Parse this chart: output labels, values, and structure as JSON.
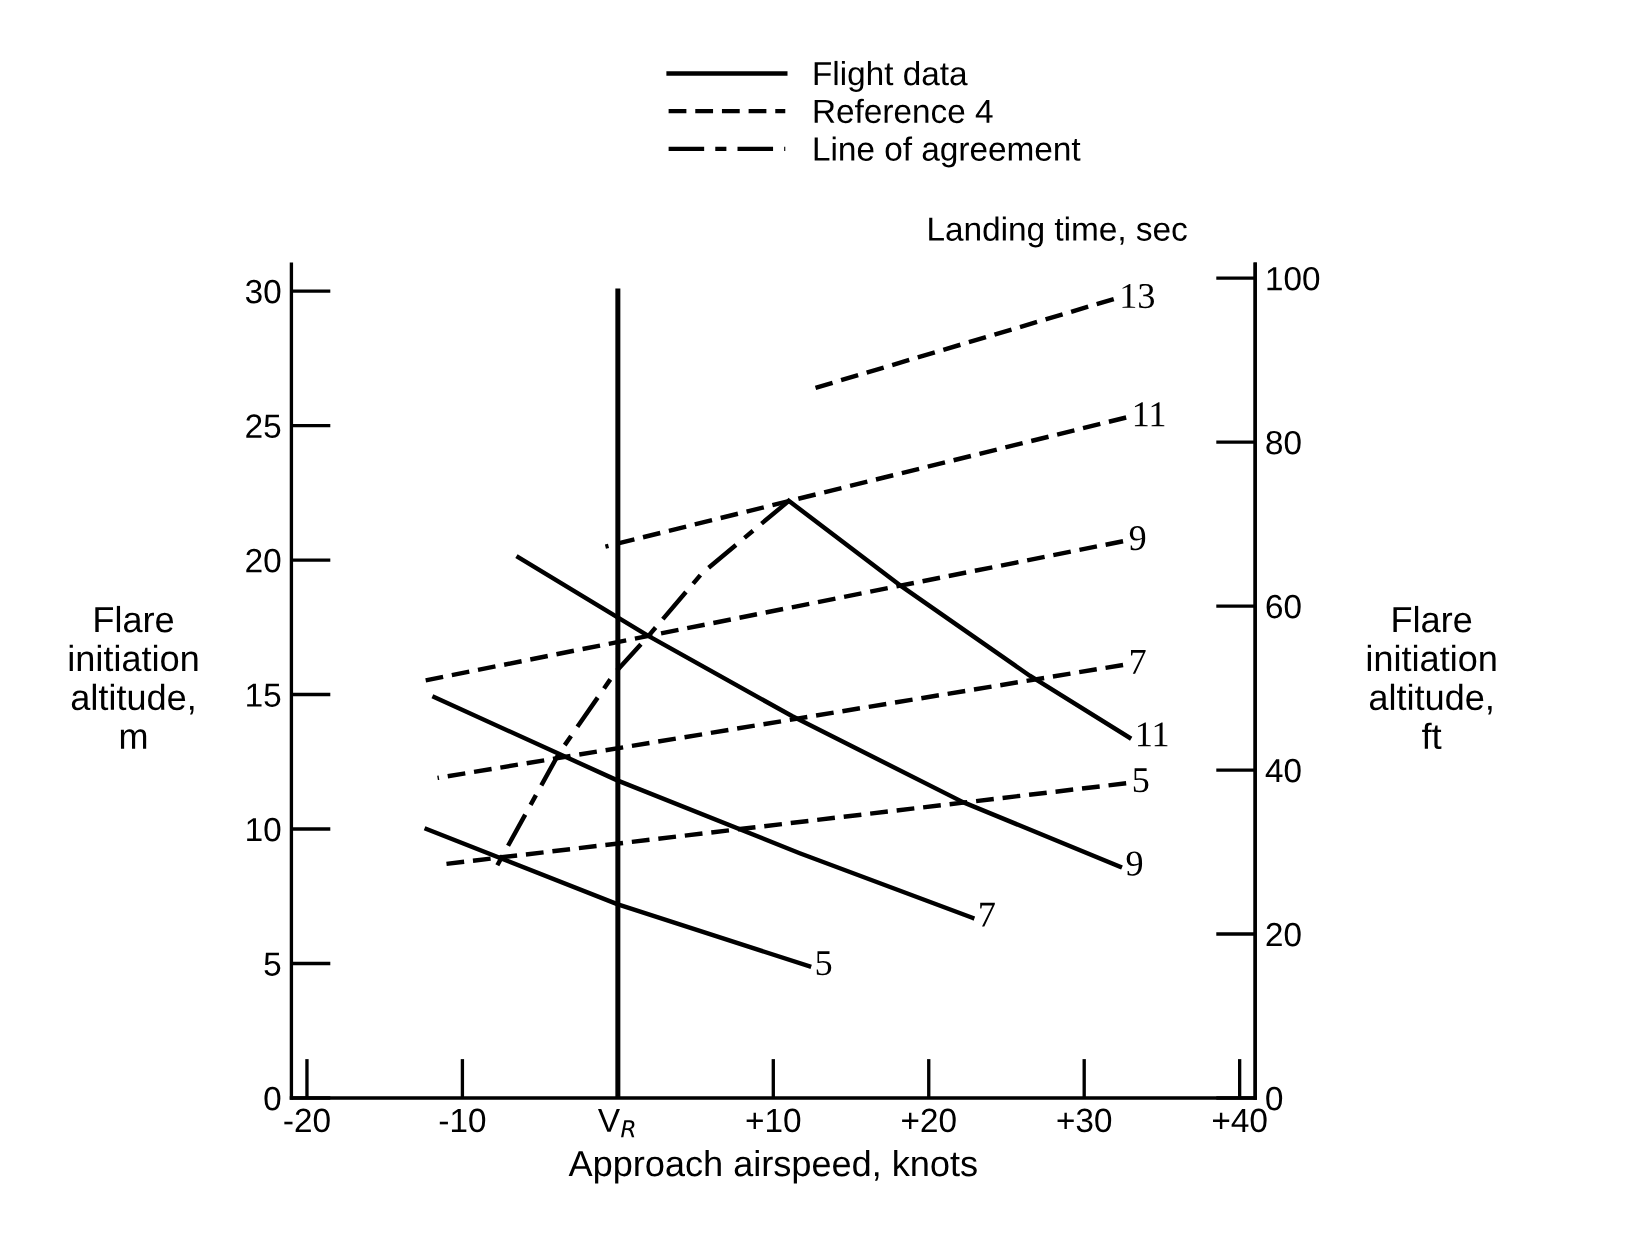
{
  "chart_data": {
    "type": "line",
    "xlabel": "Approach airspeed, knots",
    "ylabel": "Flare\ninitiation\naltitude,\nm",
    "y2label": "Flare\ninitiation\naltitude,\nft",
    "xlim": [
      -21,
      41
    ],
    "xticks": [
      -20,
      -10,
      {
        "value": 0,
        "label": "V$_{R}$"
      },
      {
        "value": 10,
        "label": "+10"
      },
      {
        "value": 20,
        "label": "+20"
      },
      {
        "value": 30,
        "label": "+30"
      },
      {
        "value": 40,
        "label": "+40"
      }
    ],
    "ylim": [
      0,
      31
    ],
    "yticks": [
      0,
      5,
      10,
      15,
      20,
      25,
      30
    ],
    "y2lim": [
      0,
      101.7
    ],
    "y2ticks": [
      0,
      20,
      40,
      60,
      80,
      100
    ],
    "grid": false,
    "legend": "top right",
    "marker": "none",
    "series": [
      {
        "name": "Flight data",
        "color": "#000000",
        "line_style": "solid",
        "x": [
          -12.3,
          0,
          12.3
        ],
        "values": [
          10.0,
          7.2,
          4.9
        ]
      },
      {
        "color": "#000000",
        "line_style": "solid",
        "x": [
          -11.8,
          0,
          11.7,
          22.8
        ],
        "values": [
          14.9,
          11.8,
          9.1,
          6.7
        ]
      },
      {
        "color": "#000000",
        "line_style": "solid",
        "x": [
          -6.4,
          1.9,
          11.2,
          22.2,
          32.3
        ],
        "values": [
          20.1,
          17.2,
          14.2,
          11.0,
          8.6
        ]
      },
      {
        "color": "#000000",
        "line_style": "solid",
        "x": [
          11.0,
          18.3,
          26.5,
          32.9
        ],
        "values": [
          22.2,
          19.0,
          15.7,
          13.4
        ]
      },
      {
        "name": "Reference 4",
        "color": "#000000",
        "line_style": "dashed",
        "x": [
          -11.1,
          32.7
        ],
        "values": [
          8.7,
          11.7
        ]
      },
      {
        "color": "#000000",
        "line_style": "dashed",
        "x": [
          -11.6,
          32.5
        ],
        "values": [
          11.9,
          16.1
        ]
      },
      {
        "color": "#000000",
        "line_style": "dashed",
        "x": [
          -12.6,
          32.5
        ],
        "values": [
          15.5,
          20.7
        ]
      },
      {
        "color": "#000000",
        "line_style": "dashed",
        "x": [
          -0.8,
          32.7
        ],
        "values": [
          20.5,
          25.3
        ]
      },
      {
        "color": "#000000",
        "line_style": "dashed",
        "x": [
          12.7,
          31.9
        ],
        "values": [
          26.4,
          29.7
        ]
      },
      {
        "name": "Line of agreement",
        "color": "#000000",
        "line_style": "dotted",
        "x": [
          -7.9,
          -3.8,
          -0.2,
          2.0,
          5.4,
          11.0
        ],
        "values": [
          8.5,
          12.8,
          15.8,
          17.2,
          19.5,
          22.2
        ]
      }
    ],
    "ref_lines": [
      {
        "axis": "x",
        "value": 0,
        "color": "#000000",
        "line_style": "solid"
      }
    ],
    "annotations": [
      "Landing time, sec",
      {
        "text": "5",
        "x": 12.3,
        "y": 4.9
      },
      {
        "text": "7",
        "x": 22.8,
        "y": 6.7
      },
      {
        "text": "9",
        "x": 32.3,
        "y": 8.6
      },
      {
        "text": "11",
        "x": 32.9,
        "y": 13.4
      },
      {
        "text": "5",
        "x": 32.7,
        "y": 11.7
      },
      {
        "text": "7",
        "x": 32.5,
        "y": 16.1
      },
      {
        "text": "9",
        "x": 32.5,
        "y": 20.7
      },
      {
        "text": "11",
        "x": 32.7,
        "y": 25.3
      },
      {
        "text": "13",
        "x": 31.9,
        "y": 29.7
      }
    ]
  }
}
